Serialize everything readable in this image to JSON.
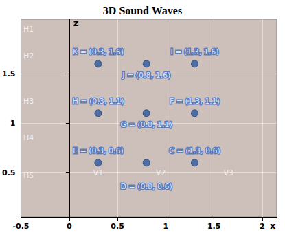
{
  "chart_data": {
    "type": "scatter",
    "title": "3D Sound Waves",
    "x_label": "x",
    "y_label": "z",
    "x": [
      0.3,
      0.8,
      1.3,
      0.3,
      0.8,
      1.3,
      0.3,
      0.8,
      1.3
    ],
    "values": [
      1.6,
      1.6,
      1.6,
      1.1,
      1.1,
      1.1,
      0.6,
      0.6,
      0.6
    ],
    "point_labels": [
      "K = (0.3, 1.6)",
      "J = (0.8, 1.6)",
      "I = (1.3, 1.6)",
      "H = (0.3, 1.1)",
      "G = (0.8, 1.1)",
      "F = (1.3, 1.1)",
      "E = (0.3, 0.6)",
      "D = (0.8, 0.6)",
      "C = (1.3, 0.6)"
    ],
    "color": "#2c5aa0",
    "marker": "circle",
    "xlim": [
      -0.5,
      2.15
    ],
    "xticks": [
      -0.5,
      0,
      0.5,
      1,
      1.5,
      2
    ],
    "ylim": [
      0.05,
      2.05
    ],
    "yticks": [
      0.5,
      1,
      1.5
    ],
    "grid": true,
    "annotations": [
      {
        "text": "H1",
        "x": -0.42,
        "y": 1.95
      },
      {
        "text": "H2",
        "x": -0.42,
        "y": 1.68
      },
      {
        "text": "H3",
        "x": -0.42,
        "y": 1.22
      },
      {
        "text": "H4",
        "x": -0.42,
        "y": 0.85
      },
      {
        "text": "H5",
        "x": -0.42,
        "y": 0.47
      },
      {
        "text": "V1",
        "x": 0.3,
        "y": 0.5
      },
      {
        "text": "V2",
        "x": 0.95,
        "y": 0.5
      },
      {
        "text": "V3",
        "x": 1.65,
        "y": 0.5
      }
    ]
  }
}
